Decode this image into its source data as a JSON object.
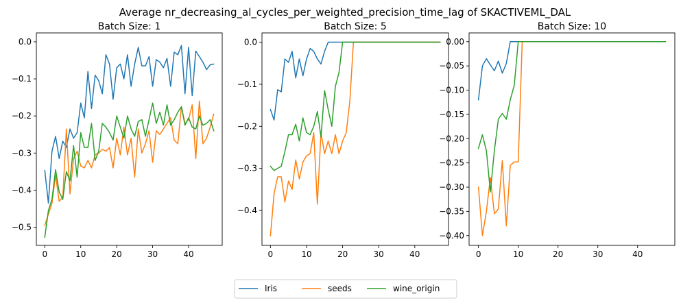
{
  "figure_title": "Average nr_decreasing_al_cycles_per_weighted_precision_time_lag of SKACTIVEML_DAL",
  "legend": {
    "entries": [
      {
        "name": "Iris",
        "color": "#1f77b4"
      },
      {
        "name": "seeds",
        "color": "#ff7f0e"
      },
      {
        "name": "wine_origin",
        "color": "#2ca02c"
      }
    ]
  },
  "chart_data": [
    {
      "type": "line",
      "title": "Batch Size: 1",
      "xlim": [
        -2.35,
        49.35
      ],
      "ylim": [
        -0.549,
        0.024
      ],
      "xticks": [
        0,
        10,
        20,
        30,
        40
      ],
      "xtick_labels": [
        "0",
        "10",
        "20",
        "30",
        "40"
      ],
      "yticks": [
        -0.5,
        -0.4,
        -0.3,
        -0.2,
        -0.1,
        0.0
      ],
      "ytick_labels": [
        "−0.5",
        "−0.4",
        "−0.3",
        "−0.2",
        "−0.1",
        "0.0"
      ],
      "x": [
        0,
        1,
        2,
        3,
        4,
        5,
        6,
        7,
        8,
        9,
        10,
        11,
        12,
        13,
        14,
        15,
        16,
        17,
        18,
        19,
        20,
        21,
        22,
        23,
        24,
        25,
        26,
        27,
        28,
        29,
        30,
        31,
        32,
        33,
        34,
        35,
        36,
        37,
        38,
        39,
        40,
        41,
        42,
        43,
        44,
        45,
        46,
        47
      ],
      "series": [
        {
          "name": "Iris",
          "color": "#1f77b4",
          "values": [
            -0.347,
            -0.435,
            -0.295,
            -0.255,
            -0.315,
            -0.268,
            -0.285,
            -0.235,
            -0.26,
            -0.245,
            -0.165,
            -0.205,
            -0.08,
            -0.18,
            -0.09,
            -0.105,
            -0.14,
            -0.035,
            -0.06,
            -0.155,
            -0.07,
            -0.06,
            -0.1,
            -0.035,
            -0.12,
            -0.06,
            -0.015,
            -0.065,
            -0.065,
            -0.04,
            -0.12,
            -0.048,
            -0.055,
            -0.07,
            -0.045,
            -0.12,
            -0.028,
            -0.035,
            -0.01,
            -0.14,
            -0.015,
            -0.145,
            -0.025,
            -0.04,
            -0.055,
            -0.075,
            -0.062,
            -0.06
          ]
        },
        {
          "name": "seeds",
          "color": "#ff7f0e",
          "values": [
            -0.495,
            -0.465,
            -0.435,
            -0.36,
            -0.43,
            -0.42,
            -0.235,
            -0.41,
            -0.315,
            -0.295,
            -0.335,
            -0.34,
            -0.32,
            -0.34,
            -0.305,
            -0.3,
            -0.29,
            -0.295,
            -0.285,
            -0.34,
            -0.26,
            -0.305,
            -0.23,
            -0.305,
            -0.26,
            -0.365,
            -0.235,
            -0.3,
            -0.275,
            -0.24,
            -0.325,
            -0.24,
            -0.25,
            -0.235,
            -0.22,
            -0.205,
            -0.265,
            -0.275,
            -0.175,
            -0.22,
            -0.21,
            -0.17,
            -0.315,
            -0.16,
            -0.275,
            -0.26,
            -0.23,
            -0.195
          ]
        },
        {
          "name": "wine_origin",
          "color": "#2ca02c",
          "values": [
            -0.527,
            -0.455,
            -0.425,
            -0.345,
            -0.405,
            -0.425,
            -0.35,
            -0.375,
            -0.28,
            -0.365,
            -0.245,
            -0.285,
            -0.285,
            -0.22,
            -0.32,
            -0.295,
            -0.22,
            -0.23,
            -0.245,
            -0.265,
            -0.2,
            -0.23,
            -0.26,
            -0.2,
            -0.235,
            -0.255,
            -0.215,
            -0.21,
            -0.255,
            -0.21,
            -0.165,
            -0.22,
            -0.19,
            -0.225,
            -0.17,
            -0.225,
            -0.21,
            -0.19,
            -0.175,
            -0.225,
            -0.205,
            -0.23,
            -0.235,
            -0.2,
            -0.225,
            -0.22,
            -0.21,
            -0.24
          ]
        }
      ]
    },
    {
      "type": "line",
      "title": "Batch Size: 5",
      "xlim": [
        -2.35,
        49.35
      ],
      "ylim": [
        -0.483,
        0.022
      ],
      "xticks": [
        0,
        10,
        20,
        30,
        40
      ],
      "xtick_labels": [
        "0",
        "10",
        "20",
        "30",
        "40"
      ],
      "yticks": [
        -0.4,
        -0.3,
        -0.2,
        -0.1,
        0.0
      ],
      "ytick_labels": [
        "−0.4",
        "−0.3",
        "−0.2",
        "−0.1",
        "0.0"
      ],
      "x": [
        0,
        1,
        2,
        3,
        4,
        5,
        6,
        7,
        8,
        9,
        10,
        11,
        12,
        13,
        14,
        15,
        16,
        17,
        18,
        19,
        20,
        21,
        22,
        23,
        24,
        25,
        26,
        27,
        28,
        29,
        30,
        31,
        32,
        33,
        34,
        35,
        36,
        37,
        38,
        39,
        40,
        41,
        42,
        43,
        44,
        45,
        46,
        47
      ],
      "series": [
        {
          "name": "Iris",
          "color": "#1f77b4",
          "values": [
            -0.16,
            -0.185,
            -0.113,
            -0.118,
            -0.04,
            -0.048,
            -0.022,
            -0.085,
            -0.04,
            -0.08,
            -0.04,
            -0.015,
            -0.022,
            -0.04,
            -0.052,
            -0.022,
            0,
            0,
            0,
            0,
            0,
            0,
            0,
            0,
            0,
            0,
            0,
            0,
            0,
            0,
            0,
            0,
            0,
            0,
            0,
            0,
            0,
            0,
            0,
            0,
            0,
            0,
            0,
            0,
            0,
            0,
            0,
            0
          ]
        },
        {
          "name": "seeds",
          "color": "#ff7f0e",
          "values": [
            -0.46,
            -0.36,
            -0.32,
            -0.32,
            -0.38,
            -0.33,
            -0.35,
            -0.28,
            -0.325,
            -0.285,
            -0.27,
            -0.265,
            -0.215,
            -0.385,
            -0.215,
            -0.265,
            -0.235,
            -0.265,
            -0.22,
            -0.265,
            -0.235,
            -0.215,
            -0.14,
            0,
            0,
            0,
            0,
            0,
            0,
            0,
            0,
            0,
            0,
            0,
            0,
            0,
            0,
            0,
            0,
            0,
            0,
            0,
            0,
            0,
            0,
            0,
            0,
            0
          ]
        },
        {
          "name": "wine_origin",
          "color": "#2ca02c",
          "values": [
            -0.295,
            -0.305,
            -0.3,
            -0.295,
            -0.26,
            -0.22,
            -0.22,
            -0.195,
            -0.235,
            -0.18,
            -0.215,
            -0.22,
            -0.2,
            -0.165,
            -0.225,
            -0.115,
            -0.16,
            -0.2,
            -0.105,
            -0.072,
            0,
            0,
            0,
            0,
            0,
            0,
            0,
            0,
            0,
            0,
            0,
            0,
            0,
            0,
            0,
            0,
            0,
            0,
            0,
            0,
            0,
            0,
            0,
            0,
            0,
            0,
            0,
            0
          ]
        }
      ]
    },
    {
      "type": "line",
      "title": "Batch Size: 10",
      "xlim": [
        -2.35,
        49.35
      ],
      "ylim": [
        -0.4201,
        0.0181
      ],
      "xticks": [
        0,
        10,
        20,
        30,
        40
      ],
      "xtick_labels": [
        "0",
        "10",
        "20",
        "30",
        "40"
      ],
      "yticks": [
        -0.4,
        -0.35,
        -0.3,
        -0.25,
        -0.2,
        -0.15,
        -0.1,
        -0.05,
        0.0
      ],
      "ytick_labels": [
        "−0.40",
        "−0.35",
        "−0.30",
        "−0.25",
        "−0.20",
        "−0.15",
        "−0.10",
        "−0.05",
        "0.00"
      ],
      "x": [
        0,
        1,
        2,
        3,
        4,
        5,
        6,
        7,
        8,
        9,
        10,
        11,
        12,
        13,
        14,
        15,
        16,
        17,
        18,
        19,
        20,
        21,
        22,
        23,
        24,
        25,
        26,
        27,
        28,
        29,
        30,
        31,
        32,
        33,
        34,
        35,
        36,
        37,
        38,
        39,
        40,
        41,
        42,
        43,
        44,
        45,
        46,
        47
      ],
      "series": [
        {
          "name": "Iris",
          "color": "#1f77b4",
          "values": [
            -0.12,
            -0.05,
            -0.035,
            -0.048,
            -0.06,
            -0.04,
            -0.065,
            -0.045,
            0,
            0,
            0,
            0,
            0,
            0,
            0,
            0,
            0,
            0,
            0,
            0,
            0,
            0,
            0,
            0,
            0,
            0,
            0,
            0,
            0,
            0,
            0,
            0,
            0,
            0,
            0,
            0,
            0,
            0,
            0,
            0,
            0,
            0,
            0,
            0,
            0,
            0,
            0,
            0
          ]
        },
        {
          "name": "seeds",
          "color": "#ff7f0e",
          "values": [
            -0.3,
            -0.4,
            -0.35,
            -0.28,
            -0.355,
            -0.345,
            -0.245,
            -0.38,
            -0.255,
            -0.248,
            -0.248,
            0,
            0,
            0,
            0,
            0,
            0,
            0,
            0,
            0,
            0,
            0,
            0,
            0,
            0,
            0,
            0,
            0,
            0,
            0,
            0,
            0,
            0,
            0,
            0,
            0,
            0,
            0,
            0,
            0,
            0,
            0,
            0,
            0,
            0,
            0,
            0,
            0
          ]
        },
        {
          "name": "wine_origin",
          "color": "#2ca02c",
          "values": [
            -0.22,
            -0.192,
            -0.225,
            -0.31,
            -0.225,
            -0.16,
            -0.148,
            -0.16,
            -0.12,
            -0.09,
            0,
            0,
            0,
            0,
            0,
            0,
            0,
            0,
            0,
            0,
            0,
            0,
            0,
            0,
            0,
            0,
            0,
            0,
            0,
            0,
            0,
            0,
            0,
            0,
            0,
            0,
            0,
            0,
            0,
            0,
            0,
            0,
            0,
            0,
            0,
            0,
            0,
            0
          ]
        }
      ]
    }
  ]
}
